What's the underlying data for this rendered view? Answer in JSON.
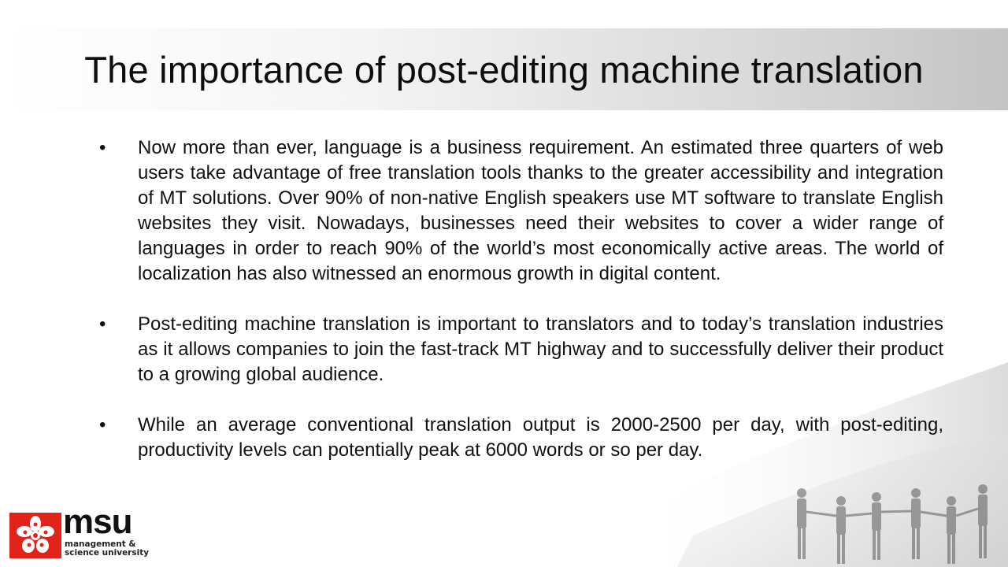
{
  "slide": {
    "title": "The importance of post-editing machine translation",
    "bullet_symbol": "•",
    "bullets": [
      "Now more than ever, language is a business requirement. An estimated three quarters of web users take advantage of free translation tools thanks to the greater accessibility and integration of MT solutions. Over 90% of non-native English speakers use MT software to translate English websites they visit. Nowadays, businesses need their websites to cover a wider range of languages in order to reach 90% of the world’s most economically active areas. The world of localization has also witnessed an enormous growth in digital content.",
      "Post-editing machine translation is important to translators and to today’s translation industries as it allows companies to join the fast-track MT highway and to successfully deliver their product to a growing global audience.",
      "While an average conventional translation output is 2000-2500 per day, with post-editing, productivity levels can potentially peak at 6000 words or so per day."
    ]
  },
  "logo": {
    "name": "msu",
    "line1": "management &",
    "line2": "science university"
  },
  "colors": {
    "logo_red": "#e2231a",
    "title_band_end": "#c4c4c4"
  }
}
